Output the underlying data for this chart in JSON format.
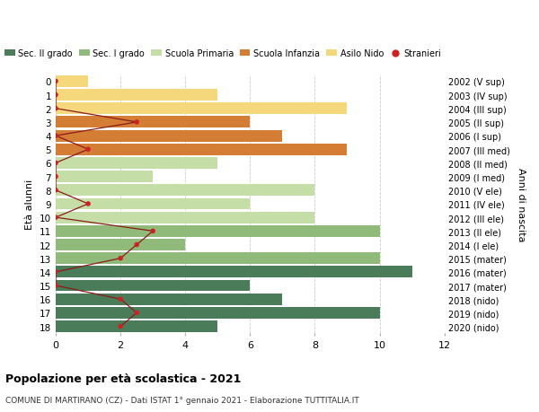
{
  "ages": [
    18,
    17,
    16,
    15,
    14,
    13,
    12,
    11,
    10,
    9,
    8,
    7,
    6,
    5,
    4,
    3,
    2,
    1,
    0
  ],
  "anni_nascita": [
    "2002 (V sup)",
    "2003 (IV sup)",
    "2004 (III sup)",
    "2005 (II sup)",
    "2006 (I sup)",
    "2007 (III med)",
    "2008 (II med)",
    "2009 (I med)",
    "2010 (V ele)",
    "2011 (IV ele)",
    "2012 (III ele)",
    "2013 (II ele)",
    "2014 (I ele)",
    "2015 (mater)",
    "2016 (mater)",
    "2017 (mater)",
    "2018 (nido)",
    "2019 (nido)",
    "2020 (nido)"
  ],
  "bar_values": [
    5,
    10,
    7,
    6,
    11,
    10,
    4,
    10,
    8,
    6,
    8,
    3,
    5,
    9,
    7,
    6,
    9,
    5,
    1
  ],
  "bar_colors": [
    "#4a7c59",
    "#4a7c59",
    "#4a7c59",
    "#4a7c59",
    "#4a7c59",
    "#8fba7a",
    "#8fba7a",
    "#8fba7a",
    "#c5dea8",
    "#c5dea8",
    "#c5dea8",
    "#c5dea8",
    "#c5dea8",
    "#d47e35",
    "#d47e35",
    "#d47e35",
    "#f5d87c",
    "#f5d87c",
    "#f5d87c"
  ],
  "stranieri_values": [
    2,
    2.5,
    2,
    0,
    0,
    2,
    2.5,
    3,
    0,
    1,
    0,
    0,
    0,
    1,
    0,
    2.5,
    0,
    0,
    0
  ],
  "legend_labels": [
    "Sec. II grado",
    "Sec. I grado",
    "Scuola Primaria",
    "Scuola Infanzia",
    "Asilo Nido",
    "Stranieri"
  ],
  "legend_colors": [
    "#4a7c59",
    "#8fba7a",
    "#c5dea8",
    "#d47e35",
    "#f5d87c",
    "#cc2222"
  ],
  "title": "Popolazione per età scolastica - 2021",
  "subtitle": "COMUNE DI MARTIRANO (CZ) - Dati ISTAT 1° gennaio 2021 - Elaborazione TUTTITALIA.IT",
  "ylabel_left": "Età alunni",
  "ylabel_right": "Anni di nascita",
  "xlim": [
    0,
    12
  ],
  "background_color": "#ffffff",
  "grid_color": "#cccccc"
}
